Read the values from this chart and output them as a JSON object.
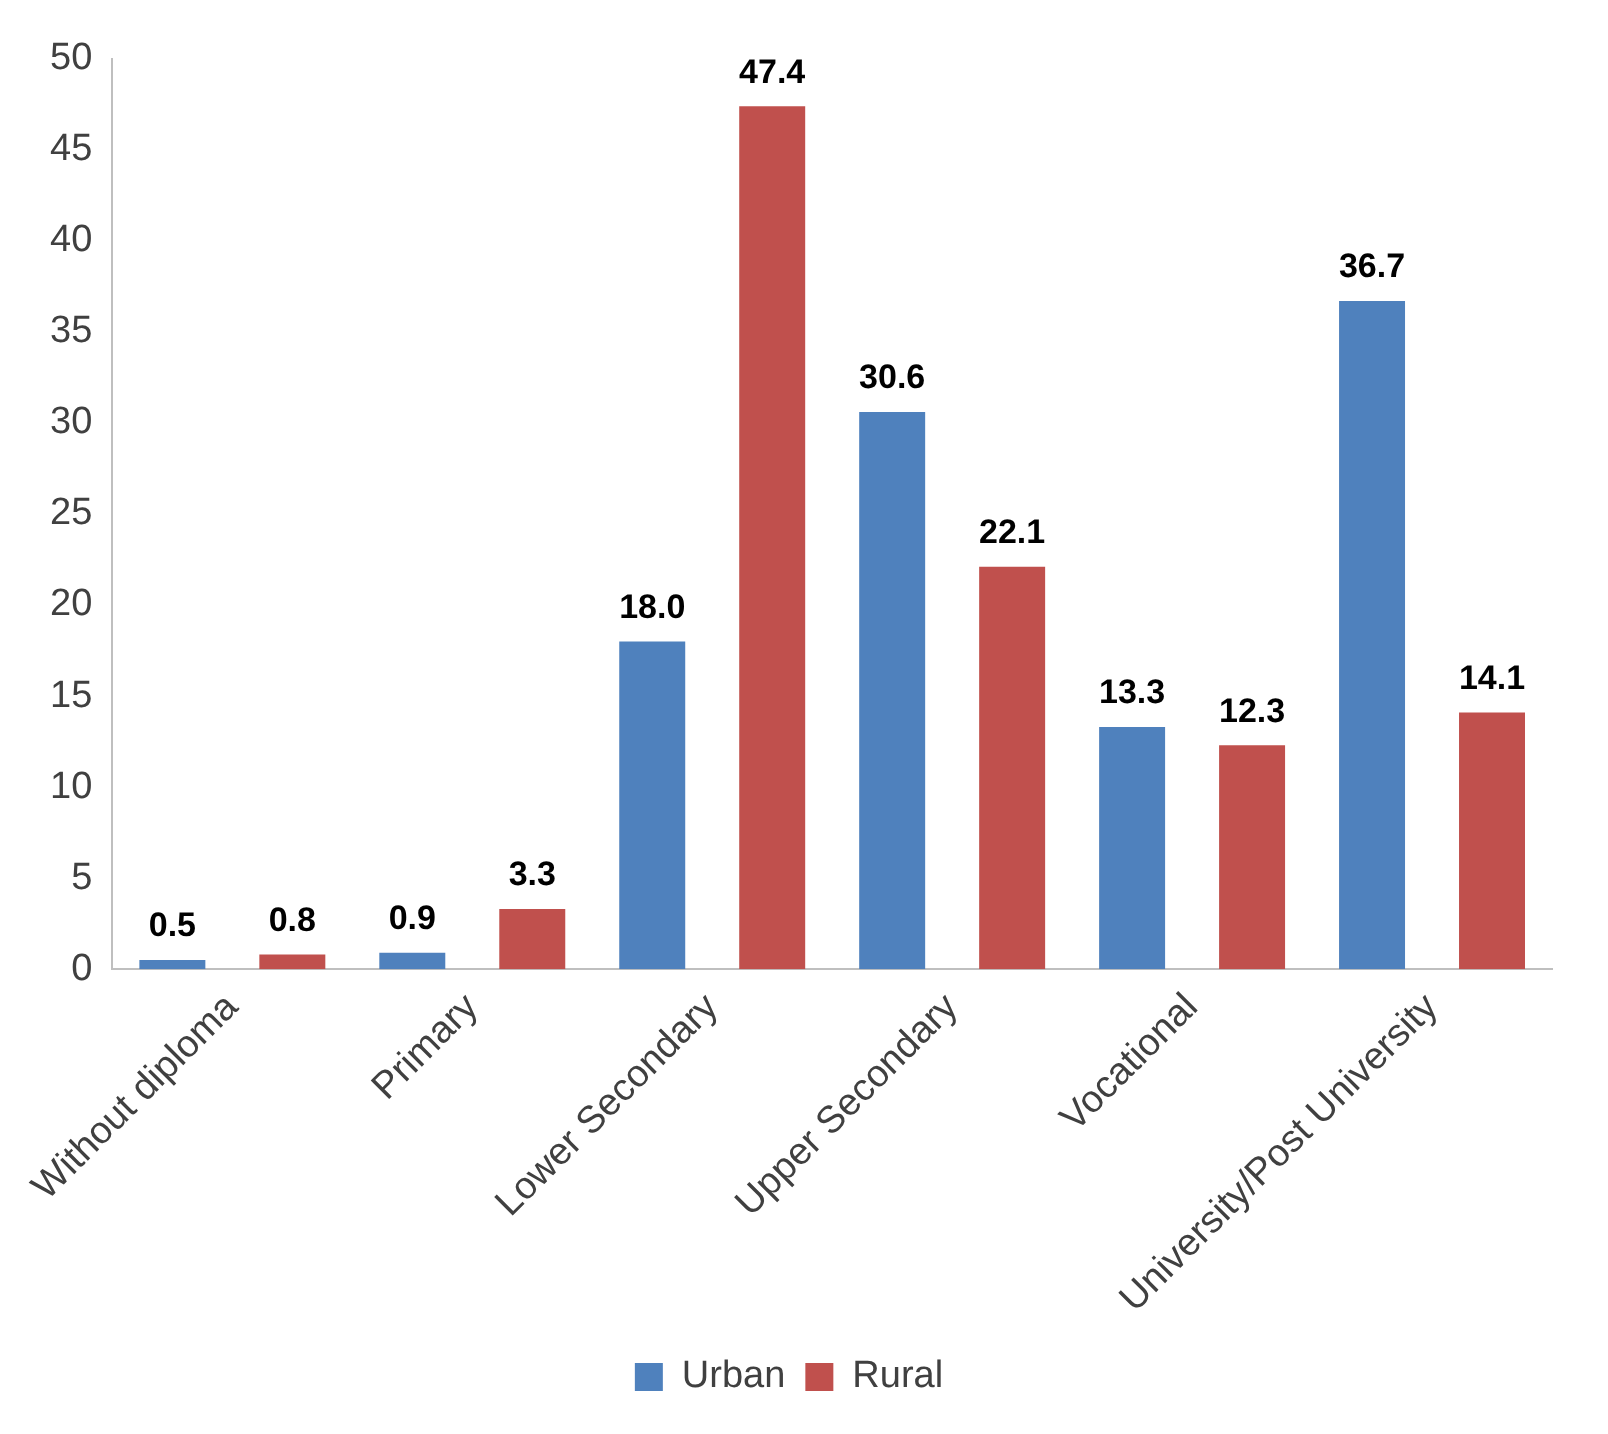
{
  "chart_data": {
    "type": "bar",
    "categories": [
      "Without diploma",
      "Primary",
      "Lower Secondary",
      "Upper Secondary",
      "Vocational",
      "University/Post University"
    ],
    "series": [
      {
        "name": "Urban",
        "color": "#4f81bd",
        "values": [
          0.5,
          0.9,
          18.0,
          30.6,
          13.3,
          36.7
        ],
        "value_labels": [
          "0.5",
          "0.9",
          "18.0",
          "30.6",
          "13.3",
          "36.7"
        ]
      },
      {
        "name": "Rural",
        "color": "#c0504d",
        "values": [
          0.8,
          3.3,
          47.4,
          22.1,
          12.3,
          14.1
        ],
        "value_labels": [
          "0.8",
          "3.3",
          "47.4",
          "22.1",
          "12.3",
          "14.1"
        ]
      }
    ],
    "ylim": [
      0,
      50
    ],
    "yticks": [
      0,
      5,
      10,
      15,
      20,
      25,
      30,
      35,
      40,
      45,
      50
    ],
    "grid": false,
    "legend": "bottom"
  }
}
